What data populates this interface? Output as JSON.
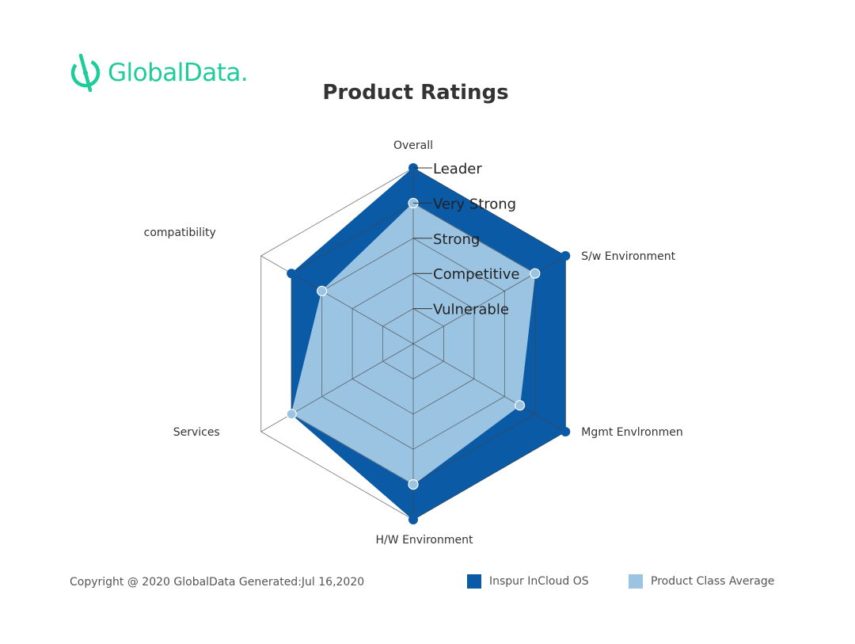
{
  "logo": {
    "text": "GlobalData.",
    "icon": "globaldata-logo-icon",
    "color": "#1ecb9a"
  },
  "footer": {
    "copyright": "Copyright @ 2020 GlobalData Generated:Jul 16,2020"
  },
  "chart_data": {
    "type": "radar",
    "title": "Product Ratings",
    "axes": [
      "Overall",
      "S/w Environment",
      "Mgmt Envlronmen",
      "H/W Environment",
      "Services",
      "compatibility"
    ],
    "levels": [
      "Vulnerable",
      "Competitive",
      "Strong",
      "Very Strong",
      "Leader"
    ],
    "scale_max": 5,
    "grid": true,
    "legend_position": "bottom-right",
    "series": [
      {
        "name": "Inspur InCloud OS",
        "color": "#0a5aa6",
        "values": [
          5,
          5,
          5,
          5,
          4,
          4
        ]
      },
      {
        "name": "Product Class Average",
        "color": "#9bc4e2",
        "values": [
          4,
          4,
          3.5,
          4,
          4,
          3
        ]
      }
    ]
  }
}
